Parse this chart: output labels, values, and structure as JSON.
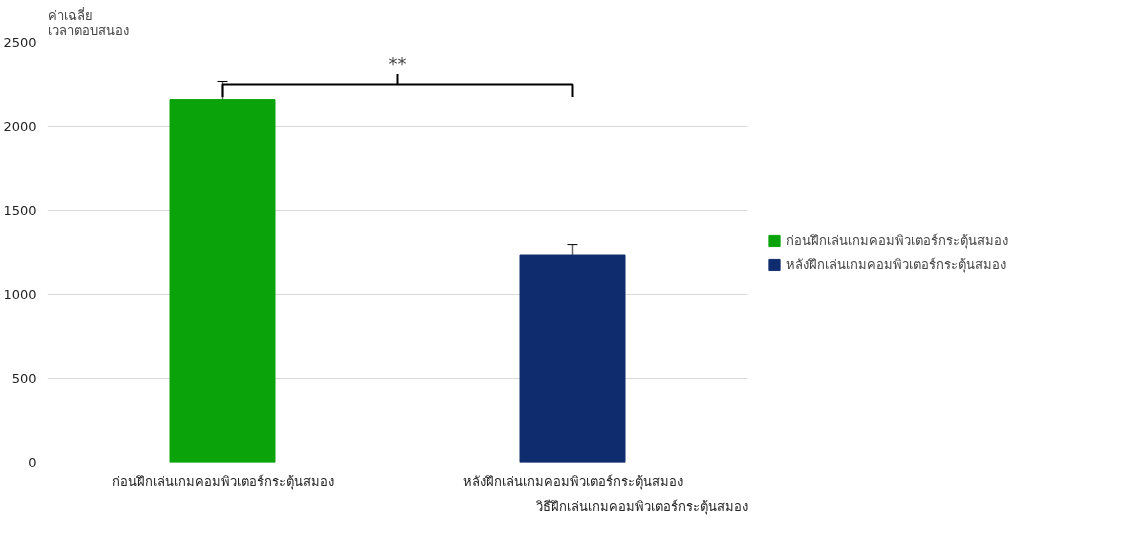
{
  "chart_data": {
    "type": "bar",
    "ylabel": "ค่าเฉลี่ย\nเวลาตอบสนอง",
    "xlabel": "วิธีฝึกเล่นเกมคอมพิวเตอร์กระตุ้นสมอง",
    "categories": [
      "ก่อนฝึกเล่นเกมคอมพิวเตอร์กระตุ้นสมอง",
      "หลังฝึกเล่นเกมคอมพิวเตอร์กระตุ้นสมอง"
    ],
    "series": [
      {
        "name": "ก่อนฝึกเล่นเกมคอมพิวเตอร์กระตุ้นสมอง",
        "color": "#0aa30a",
        "values": [
          2160,
          null
        ],
        "errors": [
          108,
          null
        ]
      },
      {
        "name": "หลังฝึกเล่นเกมคอมพิวเตอร์กระตุ้นสมอง",
        "color": "#0f2d6e",
        "values": [
          null,
          1235
        ],
        "errors": [
          null,
          62
        ]
      }
    ],
    "ylim": [
      0,
      2500
    ],
    "yticks": [
      0,
      500,
      1000,
      1500,
      2000,
      2500
    ],
    "grid": "y",
    "legend": "right",
    "annotations": [
      "**"
    ]
  }
}
